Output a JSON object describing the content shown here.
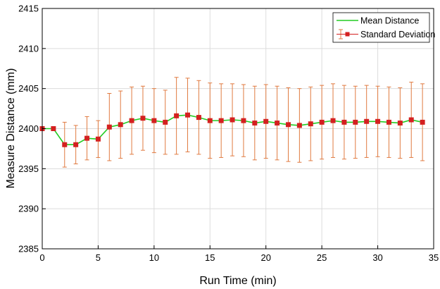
{
  "chart_data": {
    "type": "line",
    "title": "",
    "xlabel": "Run Time (min)",
    "ylabel": "Measure Distance (mm)",
    "xlim": [
      0,
      35
    ],
    "ylim": [
      2385,
      2415
    ],
    "xticks": [
      0,
      5,
      10,
      15,
      20,
      25,
      30,
      35
    ],
    "yticks": [
      2385,
      2390,
      2395,
      2400,
      2405,
      2410,
      2415
    ],
    "grid": true,
    "legend_position": "top-right",
    "x": [
      0,
      1,
      2,
      3,
      4,
      5,
      6,
      7,
      8,
      9,
      10,
      11,
      12,
      13,
      14,
      15,
      16,
      17,
      18,
      19,
      20,
      21,
      22,
      23,
      24,
      25,
      26,
      27,
      28,
      29,
      30,
      31,
      32,
      33,
      34
    ],
    "series": [
      {
        "name": "Mean Distance",
        "color": "#22cc22",
        "values": [
          2400.0,
          2400.0,
          2398.0,
          2398.0,
          2398.8,
          2398.7,
          2400.2,
          2400.5,
          2401.0,
          2401.3,
          2401.0,
          2400.8,
          2401.6,
          2401.7,
          2401.4,
          2401.0,
          2401.0,
          2401.1,
          2401.0,
          2400.7,
          2400.9,
          2400.7,
          2400.5,
          2400.4,
          2400.6,
          2400.8,
          2401.0,
          2400.8,
          2400.8,
          2400.9,
          2400.9,
          2400.8,
          2400.7,
          2401.1,
          2400.8
        ]
      },
      {
        "name": "Standard Deviation",
        "color": "#d42020",
        "errorbar_color": "#e07a40",
        "marker": "square",
        "values": [
          2400.0,
          2400.0,
          2398.0,
          2398.0,
          2398.8,
          2398.7,
          2400.2,
          2400.5,
          2401.0,
          2401.3,
          2401.0,
          2400.8,
          2401.6,
          2401.7,
          2401.4,
          2401.0,
          2401.0,
          2401.1,
          2401.0,
          2400.7,
          2400.9,
          2400.7,
          2400.5,
          2400.4,
          2400.6,
          2400.8,
          2401.0,
          2400.8,
          2400.8,
          2400.9,
          2400.9,
          2400.8,
          2400.7,
          2401.1,
          2400.8
        ],
        "error": [
          0,
          0,
          2.8,
          2.4,
          2.7,
          2.3,
          4.2,
          4.2,
          4.2,
          4.0,
          4.0,
          4.0,
          4.8,
          4.6,
          4.6,
          4.7,
          4.6,
          4.5,
          4.5,
          4.6,
          4.6,
          4.6,
          4.6,
          4.6,
          4.6,
          4.6,
          4.6,
          4.6,
          4.5,
          4.5,
          4.4,
          4.4,
          4.4,
          4.7,
          4.8
        ]
      }
    ]
  }
}
